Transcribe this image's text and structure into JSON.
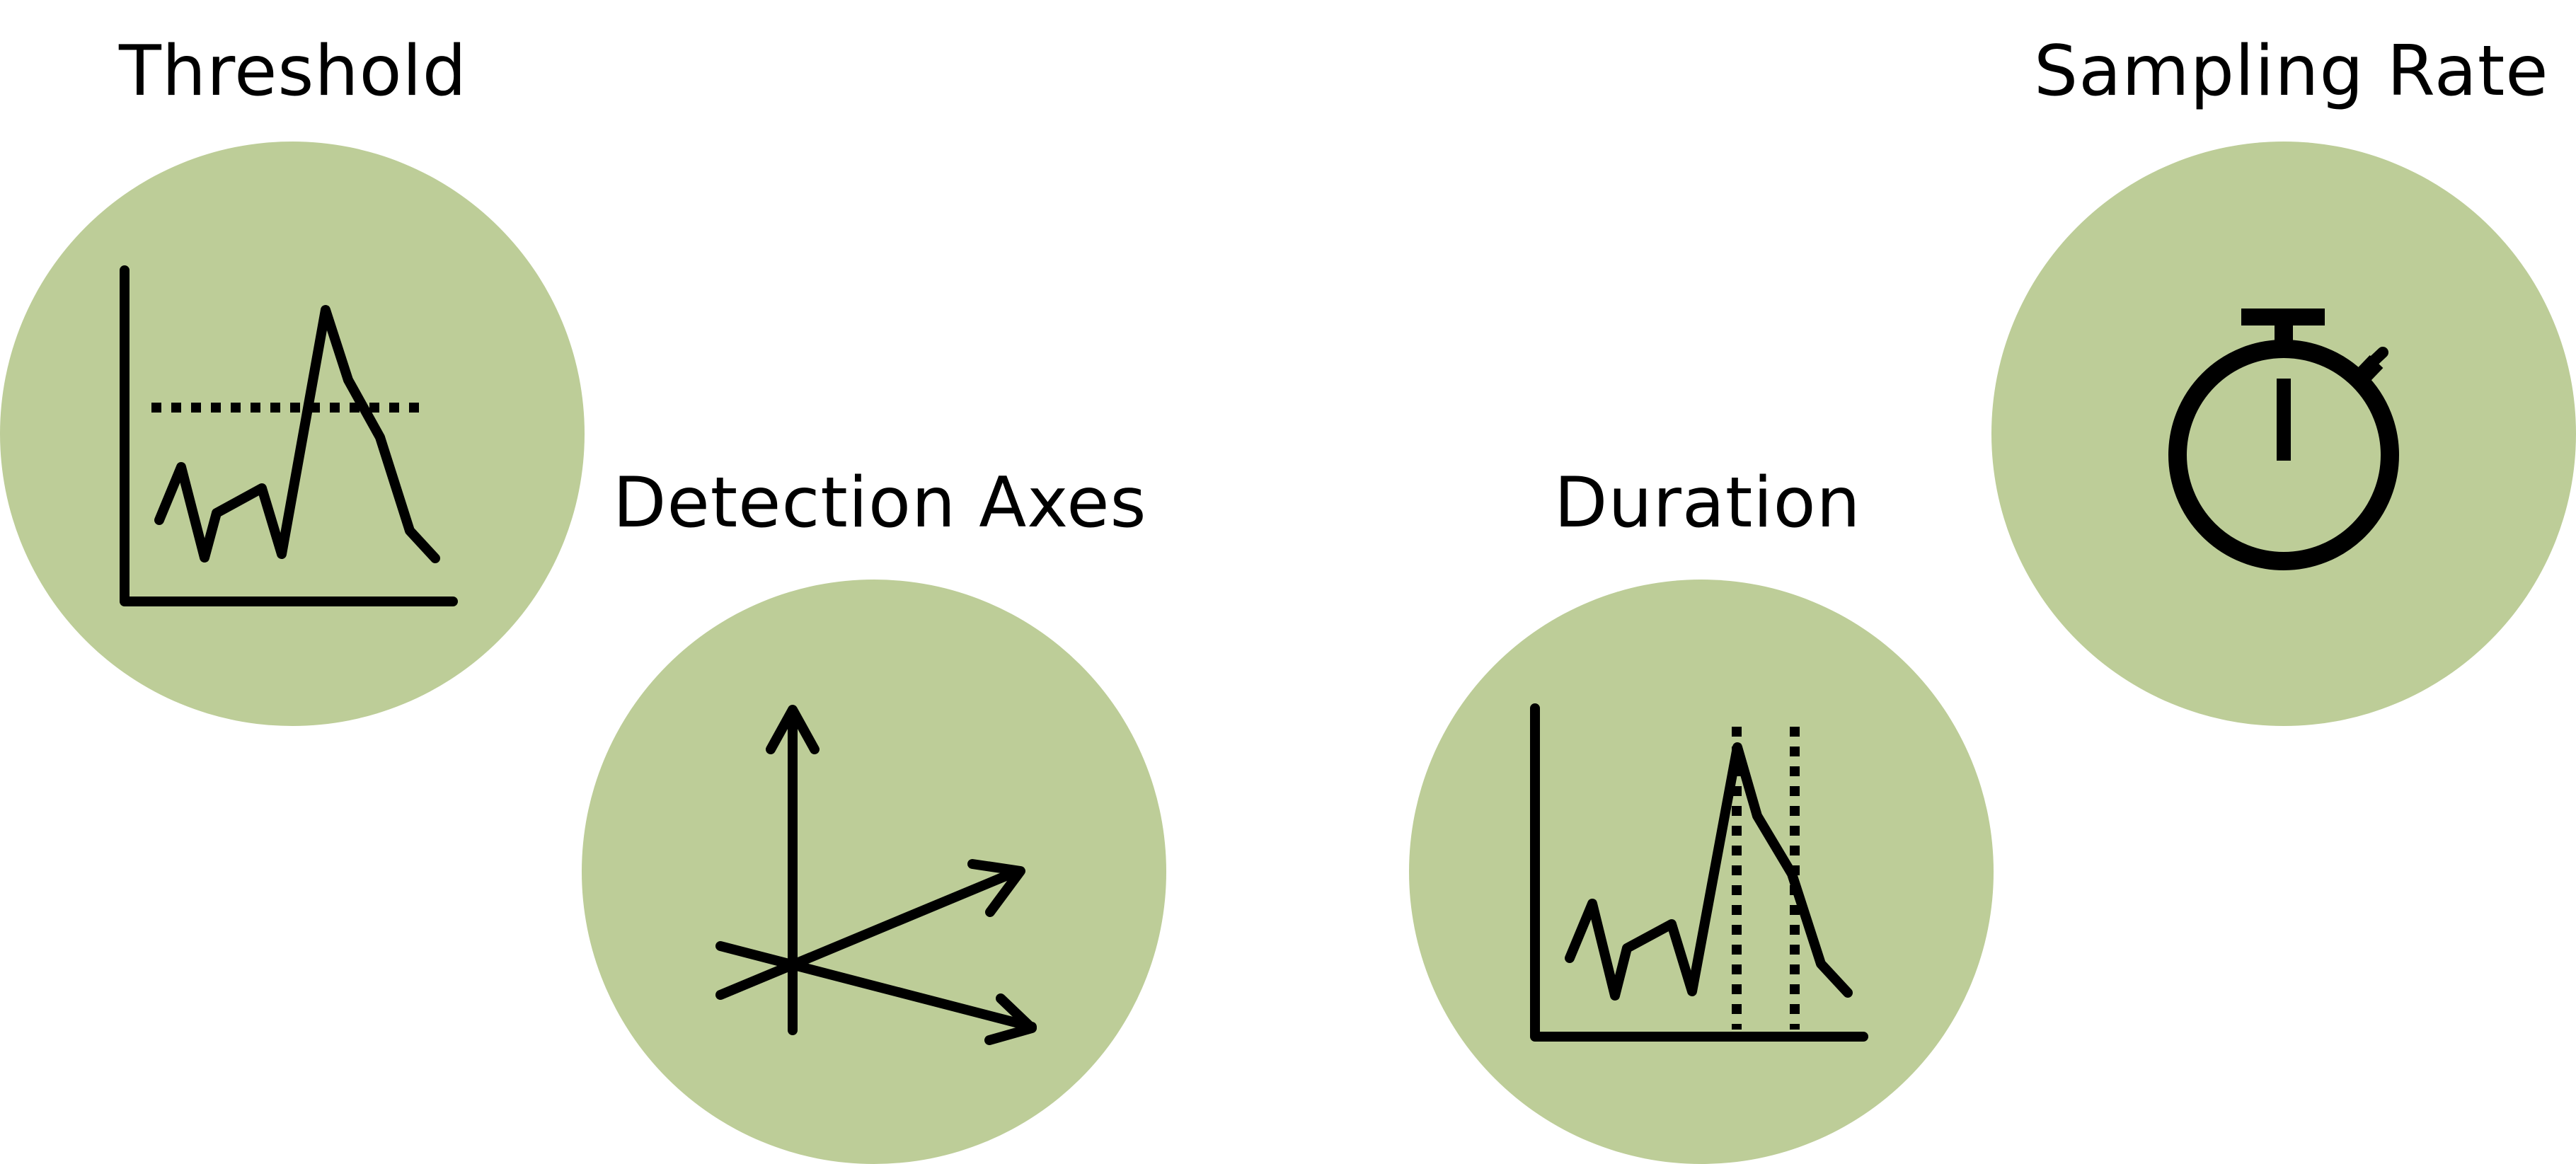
{
  "colors": {
    "circle_fill": "#bdcd98",
    "stroke": "#000000",
    "background": "#ffffff"
  },
  "items": [
    {
      "label": "Threshold",
      "icon": "threshold-chart-icon"
    },
    {
      "label": "Detection Axes",
      "icon": "three-axes-icon"
    },
    {
      "label": "Duration",
      "icon": "duration-chart-icon"
    },
    {
      "label": "Sampling Rate",
      "icon": "stopwatch-icon"
    }
  ]
}
